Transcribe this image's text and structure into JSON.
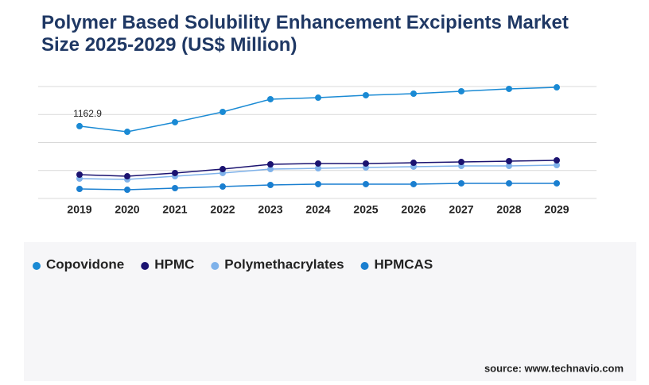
{
  "chart_data": {
    "type": "line",
    "title": "Polymer Based Solubility Enhancement Excipients Market Size 2025-2029 (US$ Million)",
    "categories": [
      "2019",
      "2020",
      "2021",
      "2022",
      "2023",
      "2024",
      "2025",
      "2026",
      "2027",
      "2028",
      "2029"
    ],
    "series": [
      {
        "name": "Copovidone",
        "color": "#1a8ad4",
        "values": [
          1162.9,
          1072,
          1226,
          1392,
          1596,
          1621,
          1660,
          1685,
          1724,
          1762,
          1787
        ]
      },
      {
        "name": "HPMC",
        "color": "#1b1370",
        "values": [
          383,
          357,
          409,
          472,
          549,
          562,
          562,
          574,
          587,
          600,
          613
        ]
      },
      {
        "name": "Polymethacrylates",
        "color": "#7fb2ea",
        "values": [
          319,
          306,
          357,
          409,
          472,
          485,
          498,
          511,
          523,
          523,
          536
        ]
      },
      {
        "name": "HPMCAS",
        "color": "#1a7fd0",
        "values": [
          153,
          140,
          166,
          191,
          217,
          230,
          230,
          230,
          243,
          243,
          243
        ]
      }
    ],
    "ylim": [
      0,
      1800
    ],
    "yticks": [
      0,
      450,
      900,
      1350,
      1800
    ],
    "grid": true,
    "source": "source: www.technavio.com"
  }
}
